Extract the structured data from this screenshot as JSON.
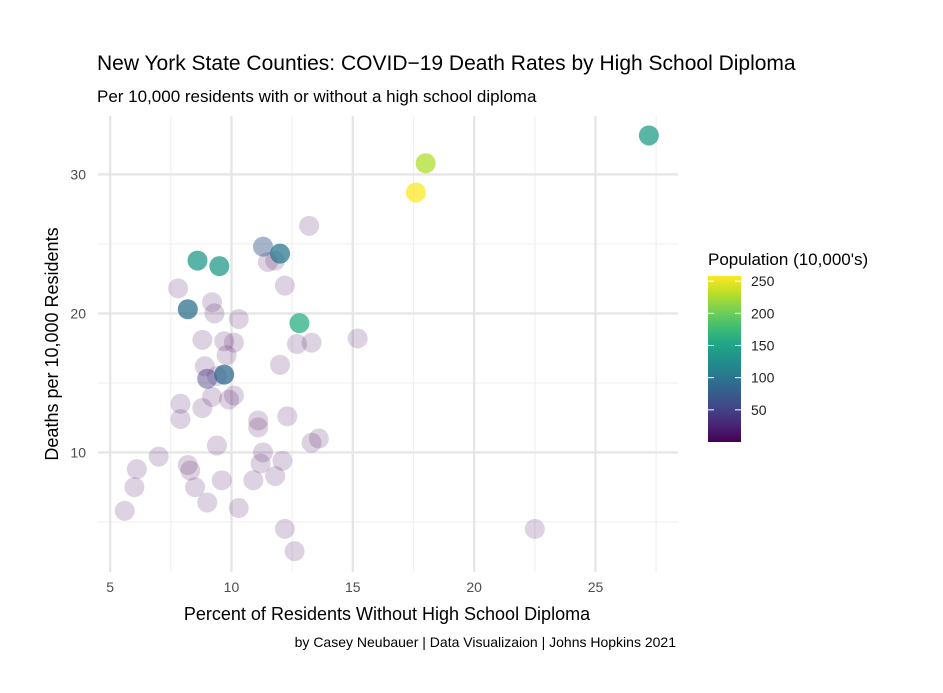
{
  "chart_data": {
    "type": "scatter",
    "title": "New York State Counties: COVID−19 Death Rates by High School Diploma",
    "subtitle": "Per 10,000 residents with or without a high school diploma",
    "xlabel": "Percent of Residents Without High School Diploma",
    "ylabel": "Deaths per 10,000 Residents",
    "caption": "by Casey Neubauer | Data Visualizaion | Johns Hopkins 2021",
    "xlim": [
      4.5,
      28.4
    ],
    "ylim": [
      1.4,
      34.2
    ],
    "x_ticks": [
      5,
      10,
      15,
      20,
      25
    ],
    "x_tick_labels": [
      "5",
      "10",
      "15",
      "20",
      "25"
    ],
    "y_ticks": [
      10,
      20,
      30
    ],
    "y_tick_labels": [
      "10",
      "20",
      "30"
    ],
    "grid": true,
    "legend": {
      "title": "Population (10,000's)",
      "position": "right",
      "range": [
        0,
        258
      ],
      "ticks": [
        50,
        100,
        150,
        200,
        250
      ],
      "tick_labels": [
        "50",
        "100",
        "150",
        "200",
        "250"
      ],
      "colormap": "viridis"
    },
    "points": [
      {
        "x": 27.2,
        "y": 32.8,
        "pop": 142
      },
      {
        "x": 18.0,
        "y": 30.8,
        "pop": 228
      },
      {
        "x": 17.6,
        "y": 28.7,
        "pop": 258
      },
      {
        "x": 8.6,
        "y": 23.8,
        "pop": 140
      },
      {
        "x": 9.5,
        "y": 23.4,
        "pop": 140
      },
      {
        "x": 12.0,
        "y": 24.3,
        "pop": 105
      },
      {
        "x": 11.3,
        "y": 24.8,
        "pop": 70
      },
      {
        "x": 8.2,
        "y": 20.3,
        "pop": 95
      },
      {
        "x": 12.8,
        "y": 19.3,
        "pop": 160
      },
      {
        "x": 9.7,
        "y": 15.6,
        "pop": 90
      },
      {
        "x": 9.0,
        "y": 15.3,
        "pop": 40
      },
      {
        "x": 9.4,
        "y": 15.5,
        "pop": 25
      },
      {
        "x": 13.2,
        "y": 26.3,
        "pop": 5
      },
      {
        "x": 11.5,
        "y": 23.7,
        "pop": 5
      },
      {
        "x": 11.8,
        "y": 23.8,
        "pop": 5
      },
      {
        "x": 7.8,
        "y": 21.8,
        "pop": 5
      },
      {
        "x": 9.2,
        "y": 20.8,
        "pop": 5
      },
      {
        "x": 9.3,
        "y": 20.0,
        "pop": 5
      },
      {
        "x": 12.2,
        "y": 22.0,
        "pop": 5
      },
      {
        "x": 10.3,
        "y": 19.6,
        "pop": 5
      },
      {
        "x": 8.8,
        "y": 18.1,
        "pop": 5
      },
      {
        "x": 9.7,
        "y": 18.0,
        "pop": 5
      },
      {
        "x": 10.1,
        "y": 17.9,
        "pop": 5
      },
      {
        "x": 12.7,
        "y": 17.8,
        "pop": 5
      },
      {
        "x": 13.3,
        "y": 17.9,
        "pop": 5
      },
      {
        "x": 15.2,
        "y": 18.2,
        "pop": 5
      },
      {
        "x": 9.8,
        "y": 17.0,
        "pop": 5
      },
      {
        "x": 8.9,
        "y": 16.2,
        "pop": 5
      },
      {
        "x": 12.0,
        "y": 16.3,
        "pop": 5
      },
      {
        "x": 9.2,
        "y": 14.0,
        "pop": 5
      },
      {
        "x": 10.1,
        "y": 14.1,
        "pop": 5
      },
      {
        "x": 9.9,
        "y": 13.8,
        "pop": 5
      },
      {
        "x": 7.9,
        "y": 13.5,
        "pop": 5
      },
      {
        "x": 8.8,
        "y": 13.2,
        "pop": 5
      },
      {
        "x": 7.9,
        "y": 12.4,
        "pop": 5
      },
      {
        "x": 11.1,
        "y": 12.3,
        "pop": 5
      },
      {
        "x": 12.3,
        "y": 12.6,
        "pop": 5
      },
      {
        "x": 11.1,
        "y": 11.8,
        "pop": 5
      },
      {
        "x": 13.6,
        "y": 11.0,
        "pop": 5
      },
      {
        "x": 13.3,
        "y": 10.7,
        "pop": 5
      },
      {
        "x": 9.4,
        "y": 10.5,
        "pop": 5
      },
      {
        "x": 11.3,
        "y": 10.0,
        "pop": 5
      },
      {
        "x": 7.0,
        "y": 9.7,
        "pop": 5
      },
      {
        "x": 12.1,
        "y": 9.4,
        "pop": 5
      },
      {
        "x": 11.2,
        "y": 9.2,
        "pop": 5
      },
      {
        "x": 8.2,
        "y": 9.1,
        "pop": 5
      },
      {
        "x": 8.3,
        "y": 8.7,
        "pop": 5
      },
      {
        "x": 6.1,
        "y": 8.8,
        "pop": 5
      },
      {
        "x": 11.8,
        "y": 8.3,
        "pop": 5
      },
      {
        "x": 10.9,
        "y": 8.0,
        "pop": 5
      },
      {
        "x": 9.6,
        "y": 8.0,
        "pop": 5
      },
      {
        "x": 8.5,
        "y": 7.5,
        "pop": 5
      },
      {
        "x": 6.0,
        "y": 7.5,
        "pop": 5
      },
      {
        "x": 9.0,
        "y": 6.4,
        "pop": 5
      },
      {
        "x": 10.3,
        "y": 6.0,
        "pop": 5
      },
      {
        "x": 5.6,
        "y": 5.8,
        "pop": 5
      },
      {
        "x": 12.2,
        "y": 4.5,
        "pop": 5
      },
      {
        "x": 22.5,
        "y": 4.5,
        "pop": 5
      },
      {
        "x": 12.6,
        "y": 2.9,
        "pop": 5
      }
    ]
  }
}
